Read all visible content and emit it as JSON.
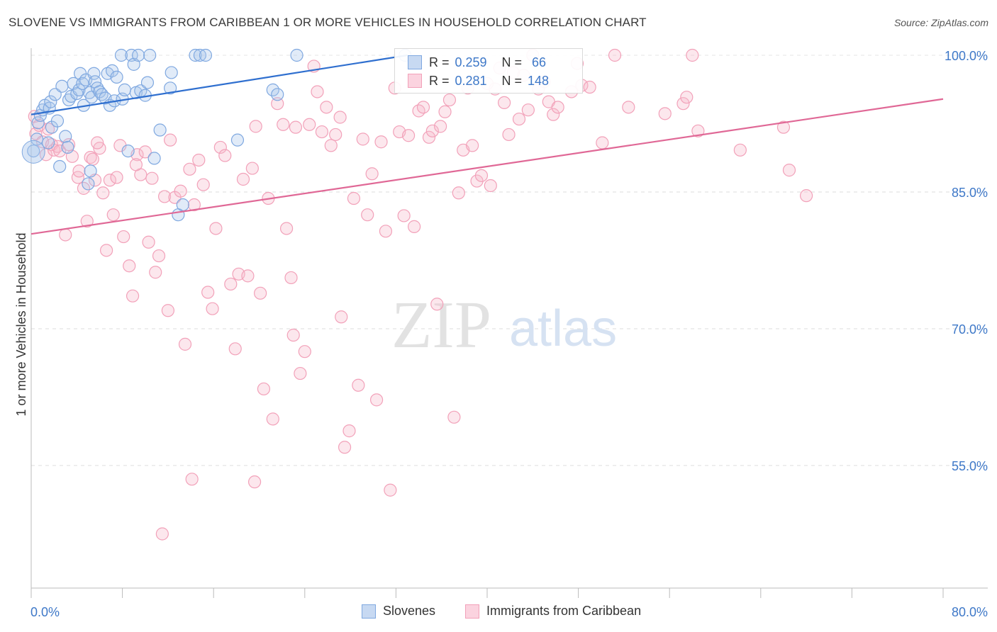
{
  "header": {
    "title": "SLOVENE VS IMMIGRANTS FROM CARIBBEAN 1 OR MORE VEHICLES IN HOUSEHOLD CORRELATION CHART",
    "source": "Source: ZipAtlas.com"
  },
  "watermark": {
    "zip": "ZIP",
    "atlas": "atlas"
  },
  "legend_stats": {
    "r_label": "R =",
    "n_label": "N =",
    "series": [
      {
        "r": "0.259",
        "n": "66"
      },
      {
        "r": "0.281",
        "n": "148"
      }
    ]
  },
  "bottom_legend": {
    "s1": "Slovenes",
    "s2": "Immigrants from Caribbean"
  },
  "axes": {
    "x_min_label": "0.0%",
    "x_max_label": "80.0%"
  },
  "chart_data": {
    "type": "scatter",
    "ylabel": "1 or more Vehicles in Household",
    "xlim": [
      0,
      80
    ],
    "ylim": [
      40,
      102
    ],
    "y_ticks": [
      {
        "value": 100,
        "label": "100.0%"
      },
      {
        "value": 85,
        "label": "85.0%"
      },
      {
        "value": 70,
        "label": "70.0%"
      },
      {
        "value": 55,
        "label": "55.0%"
      }
    ],
    "grid": true,
    "colors": {
      "slovenes": "#7fa8e0",
      "caribbean": "#f2a1b9",
      "slovenes_line": "#2f6fcf",
      "caribbean_line": "#e06896",
      "tick_label": "#3e78c8"
    },
    "series": [
      {
        "name": "Slovenes",
        "trend": {
          "x": [
            0,
            33
          ],
          "y": [
            93.5,
            100.0
          ]
        },
        "points": [
          [
            0.2,
            89.5
          ],
          [
            0.5,
            90.8
          ],
          [
            0.6,
            92.6
          ],
          [
            0.8,
            93.4
          ],
          [
            1.0,
            94.0
          ],
          [
            1.2,
            94.5
          ],
          [
            1.5,
            90.4
          ],
          [
            1.6,
            94.2
          ],
          [
            1.7,
            94.9
          ],
          [
            1.8,
            92.1
          ],
          [
            2.1,
            95.7
          ],
          [
            2.3,
            92.8
          ],
          [
            2.5,
            87.8
          ],
          [
            2.7,
            96.6
          ],
          [
            3.0,
            91.1
          ],
          [
            3.2,
            89.9
          ],
          [
            3.3,
            95.1
          ],
          [
            3.5,
            95.5
          ],
          [
            3.7,
            96.9
          ],
          [
            4.0,
            95.8
          ],
          [
            4.2,
            96.2
          ],
          [
            4.3,
            98.0
          ],
          [
            4.5,
            96.9
          ],
          [
            4.6,
            94.5
          ],
          [
            4.8,
            97.3
          ],
          [
            5.0,
            85.9
          ],
          [
            5.1,
            95.9
          ],
          [
            5.2,
            87.3
          ],
          [
            5.3,
            95.4
          ],
          [
            5.5,
            98.0
          ],
          [
            5.6,
            97.1
          ],
          [
            5.8,
            96.4
          ],
          [
            6.0,
            96.0
          ],
          [
            6.2,
            95.7
          ],
          [
            6.5,
            95.3
          ],
          [
            6.7,
            98.0
          ],
          [
            6.9,
            94.5
          ],
          [
            7.1,
            98.3
          ],
          [
            7.3,
            95.0
          ],
          [
            7.5,
            97.6
          ],
          [
            7.9,
            100.0
          ],
          [
            8.0,
            95.2
          ],
          [
            8.2,
            96.2
          ],
          [
            8.5,
            89.5
          ],
          [
            8.8,
            100.0
          ],
          [
            9.0,
            99.0
          ],
          [
            9.2,
            95.9
          ],
          [
            9.4,
            100.0
          ],
          [
            9.6,
            96.1
          ],
          [
            10.0,
            95.6
          ],
          [
            10.2,
            97.0
          ],
          [
            10.4,
            100.0
          ],
          [
            10.8,
            88.7
          ],
          [
            11.3,
            91.8
          ],
          [
            12.3,
            98.1
          ],
          [
            12.2,
            96.4
          ],
          [
            12.9,
            82.5
          ],
          [
            13.3,
            83.6
          ],
          [
            14.4,
            100.0
          ],
          [
            14.8,
            100.0
          ],
          [
            15.3,
            100.0
          ],
          [
            18.1,
            90.7
          ],
          [
            21.2,
            96.2
          ],
          [
            21.6,
            95.7
          ],
          [
            23.3,
            100.0
          ],
          [
            32.8,
            100.0
          ]
        ]
      },
      {
        "name": "Immigrants from Caribbean",
        "trend": {
          "x": [
            0,
            80
          ],
          "y": [
            80.4,
            95.2
          ]
        },
        "points": [
          [
            0.3,
            93.3
          ],
          [
            0.4,
            91.4
          ],
          [
            0.7,
            92.3
          ],
          [
            1.0,
            90.5
          ],
          [
            1.3,
            89.1
          ],
          [
            1.5,
            91.9
          ],
          [
            1.8,
            90.2
          ],
          [
            2.0,
            89.6
          ],
          [
            2.3,
            90.0
          ],
          [
            2.5,
            89.5
          ],
          [
            3.0,
            80.3
          ],
          [
            3.3,
            90.2
          ],
          [
            3.6,
            88.9
          ],
          [
            4.1,
            86.6
          ],
          [
            4.2,
            87.3
          ],
          [
            4.6,
            85.4
          ],
          [
            4.9,
            81.8
          ],
          [
            5.2,
            88.8
          ],
          [
            5.4,
            88.6
          ],
          [
            5.6,
            86.3
          ],
          [
            6.0,
            89.8
          ],
          [
            6.3,
            84.9
          ],
          [
            6.6,
            78.6
          ],
          [
            6.9,
            86.3
          ],
          [
            7.2,
            82.5
          ],
          [
            7.5,
            86.6
          ],
          [
            7.8,
            90.1
          ],
          [
            8.1,
            80.1
          ],
          [
            8.6,
            76.9
          ],
          [
            8.9,
            73.6
          ],
          [
            9.3,
            89.1
          ],
          [
            9.6,
            86.9
          ],
          [
            10.0,
            89.4
          ],
          [
            10.3,
            79.5
          ],
          [
            10.6,
            86.5
          ],
          [
            10.9,
            76.2
          ],
          [
            11.2,
            78.0
          ],
          [
            11.7,
            84.5
          ],
          [
            12.0,
            72.0
          ],
          [
            12.2,
            90.7
          ],
          [
            12.6,
            84.4
          ],
          [
            13.1,
            85.1
          ],
          [
            13.5,
            68.3
          ],
          [
            13.9,
            87.5
          ],
          [
            14.3,
            83.6
          ],
          [
            14.7,
            88.5
          ],
          [
            15.1,
            85.8
          ],
          [
            15.5,
            74.0
          ],
          [
            15.9,
            72.2
          ],
          [
            16.2,
            81.0
          ],
          [
            16.6,
            89.9
          ],
          [
            17.0,
            89.0
          ],
          [
            17.5,
            74.9
          ],
          [
            17.9,
            67.8
          ],
          [
            18.2,
            76.0
          ],
          [
            18.6,
            86.4
          ],
          [
            19.0,
            75.8
          ],
          [
            19.4,
            87.6
          ],
          [
            19.7,
            92.2
          ],
          [
            20.1,
            73.9
          ],
          [
            20.4,
            63.4
          ],
          [
            20.8,
            84.3
          ],
          [
            21.2,
            60.1
          ],
          [
            21.6,
            94.7
          ],
          [
            22.1,
            92.4
          ],
          [
            22.4,
            81.0
          ],
          [
            22.8,
            75.6
          ],
          [
            23.2,
            92.1
          ],
          [
            23.6,
            65.1
          ],
          [
            24.0,
            67.5
          ],
          [
            24.4,
            92.4
          ],
          [
            24.8,
            98.8
          ],
          [
            25.1,
            96.0
          ],
          [
            25.5,
            91.6
          ],
          [
            25.9,
            94.3
          ],
          [
            26.3,
            90.1
          ],
          [
            26.7,
            91.3
          ],
          [
            27.1,
            93.2
          ],
          [
            27.5,
            57.0
          ],
          [
            27.9,
            58.8
          ],
          [
            28.3,
            84.3
          ],
          [
            28.7,
            63.8
          ],
          [
            29.1,
            90.8
          ],
          [
            29.5,
            82.5
          ],
          [
            29.9,
            87.0
          ],
          [
            30.3,
            62.2
          ],
          [
            30.7,
            90.5
          ],
          [
            31.1,
            80.7
          ],
          [
            31.5,
            52.3
          ],
          [
            31.9,
            96.4
          ],
          [
            32.3,
            91.6
          ],
          [
            32.7,
            82.4
          ],
          [
            33.1,
            91.2
          ],
          [
            33.6,
            81.2
          ],
          [
            34.0,
            93.9
          ],
          [
            34.4,
            94.3
          ],
          [
            34.9,
            91.0
          ],
          [
            35.2,
            91.7
          ],
          [
            35.6,
            72.7
          ],
          [
            35.9,
            92.2
          ],
          [
            36.3,
            93.8
          ],
          [
            36.7,
            95.1
          ],
          [
            37.1,
            60.3
          ],
          [
            37.5,
            84.9
          ],
          [
            37.9,
            89.6
          ],
          [
            38.3,
            96.4
          ],
          [
            38.7,
            90.1
          ],
          [
            39.1,
            86.2
          ],
          [
            39.5,
            86.8
          ],
          [
            40.0,
            96.9
          ],
          [
            40.3,
            85.7
          ],
          [
            40.7,
            96.3
          ],
          [
            41.1,
            98.6
          ],
          [
            41.5,
            94.8
          ],
          [
            41.9,
            91.3
          ],
          [
            42.3,
            98.1
          ],
          [
            42.8,
            93.0
          ],
          [
            43.2,
            97.8
          ],
          [
            43.6,
            94.0
          ],
          [
            44.0,
            100.0
          ],
          [
            44.5,
            96.3
          ],
          [
            45.0,
            97.1
          ],
          [
            45.4,
            94.9
          ],
          [
            45.8,
            93.5
          ],
          [
            46.2,
            94.3
          ],
          [
            47.4,
            96.0
          ],
          [
            47.9,
            99.1
          ],
          [
            48.3,
            96.7
          ],
          [
            49.0,
            96.5
          ],
          [
            50.1,
            90.4
          ],
          [
            51.2,
            100.0
          ],
          [
            52.4,
            94.3
          ],
          [
            55.6,
            93.6
          ],
          [
            57.2,
            94.7
          ],
          [
            57.5,
            95.4
          ],
          [
            58.0,
            100.0
          ],
          [
            58.5,
            91.7
          ],
          [
            62.2,
            89.6
          ],
          [
            66.0,
            92.1
          ],
          [
            66.5,
            87.4
          ],
          [
            68.0,
            84.6
          ],
          [
            11.5,
            47.5
          ],
          [
            14.1,
            53.5
          ],
          [
            19.6,
            53.2
          ],
          [
            5.8,
            90.4
          ],
          [
            9.2,
            88.0
          ],
          [
            23.0,
            69.3
          ],
          [
            27.2,
            71.3
          ]
        ]
      }
    ]
  }
}
